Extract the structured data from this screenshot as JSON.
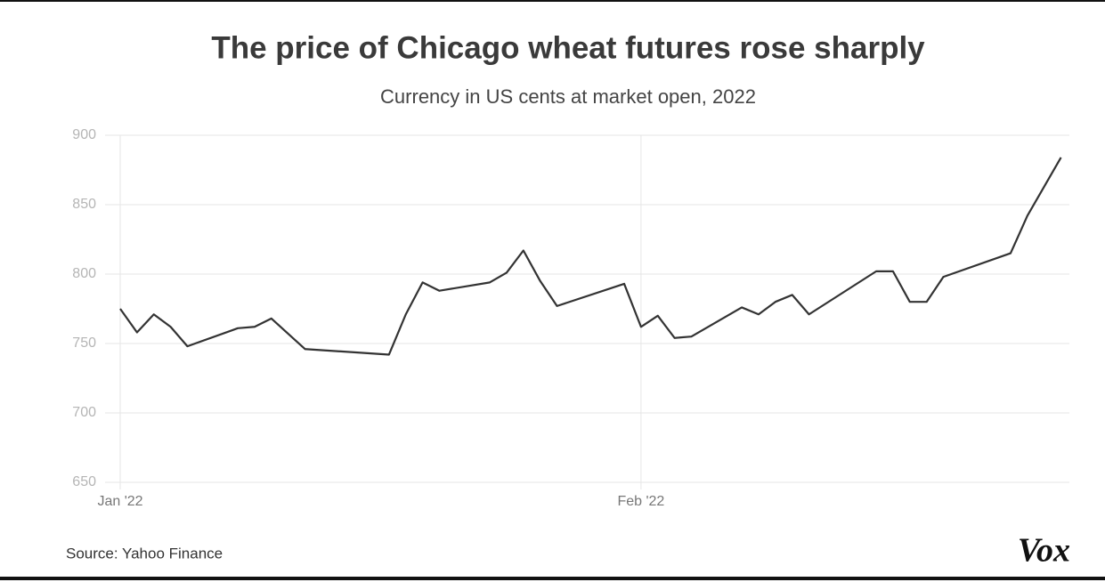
{
  "chart_data": {
    "type": "line",
    "title": "The price of Chicago wheat futures rose sharply",
    "subtitle": "Currency in US cents at market open, 2022",
    "source": "Source: Yahoo Finance",
    "logo": "Vox",
    "x": [
      0,
      1,
      2,
      3,
      4,
      7,
      8,
      9,
      11,
      16,
      17,
      18,
      19,
      22,
      23,
      24,
      25,
      26,
      30,
      31,
      32,
      33,
      34,
      37,
      38,
      39,
      40,
      41,
      45,
      46,
      47,
      48,
      49,
      53,
      54,
      56
    ],
    "series": [
      {
        "name": "Chicago wheat futures",
        "color": "#333333",
        "values": [
          775,
          758,
          771,
          762,
          748,
          761,
          762,
          768,
          746,
          742,
          771,
          794,
          788,
          794,
          801,
          817,
          795,
          777,
          793,
          762,
          770,
          754,
          755,
          776,
          771,
          780,
          785,
          771,
          802,
          802,
          780,
          780,
          798,
          815,
          842,
          884
        ]
      }
    ],
    "xlim": [
      0,
      56.5
    ],
    "xticks": [
      {
        "value": 0,
        "label": "Jan '22"
      },
      {
        "value": 31,
        "label": "Feb '22"
      }
    ],
    "ylim": [
      650,
      900
    ],
    "yticks": [
      650,
      700,
      750,
      800,
      850,
      900
    ],
    "grid": true
  }
}
